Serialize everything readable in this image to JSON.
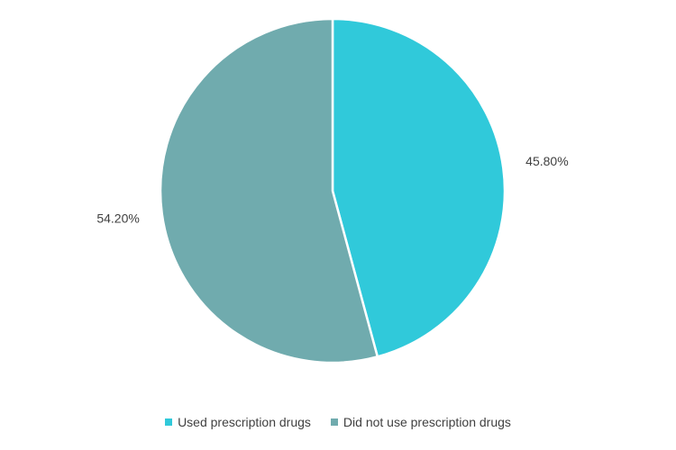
{
  "chart_data": {
    "type": "pie",
    "slices": [
      {
        "name": "Used prescription drugs",
        "value": 45.8,
        "label": "45.80%",
        "color": "#30C9DA"
      },
      {
        "name": "Did not use prescription drugs",
        "value": 54.2,
        "label": "54.20%",
        "color": "#70ABAE"
      }
    ],
    "start_angle": "12 o'clock",
    "direction": "clockwise",
    "slice_border_color": "#ffffff",
    "legend_position": "bottom"
  },
  "legend": {
    "items": [
      {
        "label": "Used prescription drugs",
        "color": "#30C9DA"
      },
      {
        "label": "Did not use prescription drugs",
        "color": "#70ABAE"
      }
    ]
  }
}
